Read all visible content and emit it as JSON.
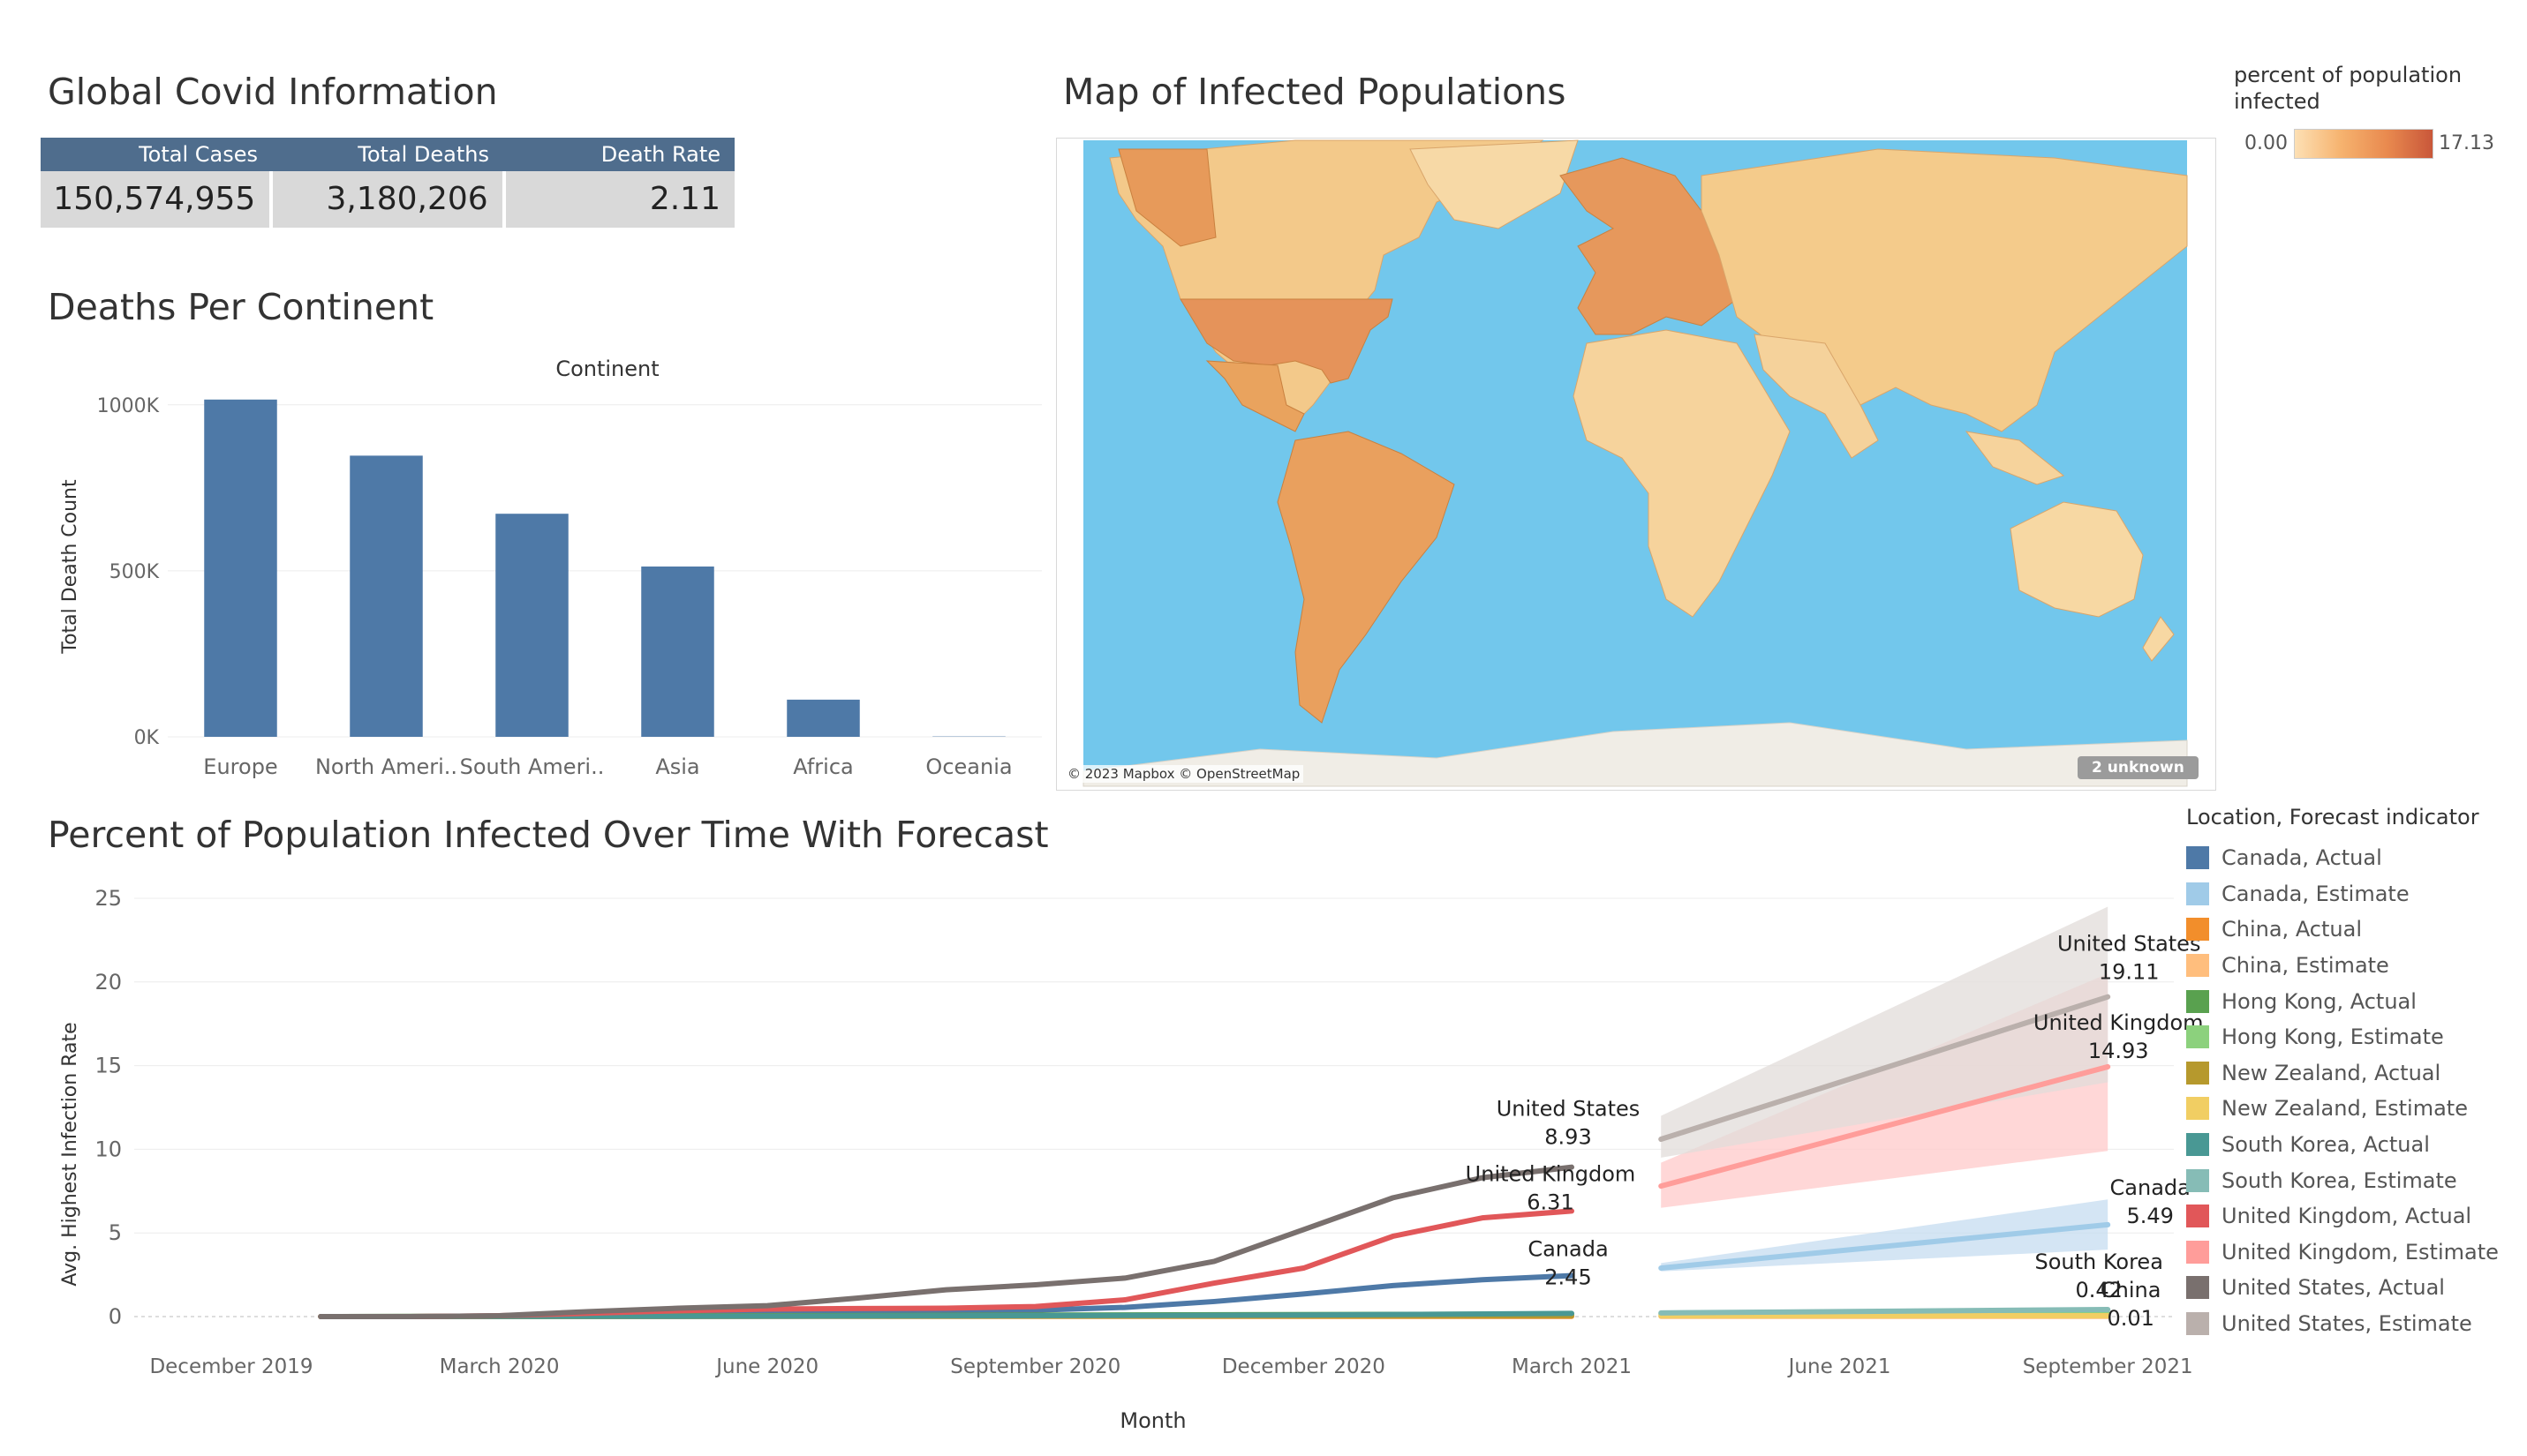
{
  "kpi": {
    "title": "Global Covid Information",
    "headers": [
      "Total Cases",
      "Total Deaths",
      "Death Rate"
    ],
    "values": [
      "150,574,955",
      "3,180,206",
      "2.11"
    ]
  },
  "map": {
    "title": "Map of Infected Populations",
    "credit": "© 2023 Mapbox © OpenStreetMap",
    "unknown_badge": "2 unknown",
    "legend_title": "percent of population infected",
    "legend_min": "0.00",
    "legend_max": "17.13",
    "ocean_color": "#72c7ec",
    "land_color": "#f3c98a"
  },
  "chart_data": [
    {
      "type": "bar",
      "title": "Deaths Per Continent",
      "column_header": "Continent",
      "ylabel": "Total Death Count",
      "categories": [
        "Europe",
        "North Ameri..",
        "South Ameri..",
        "Asia",
        "Africa",
        "Oceania"
      ],
      "values": [
        1016000,
        847000,
        672000,
        513000,
        112000,
        1000
      ],
      "ylim": [
        0,
        1050000
      ],
      "yticks": [
        0,
        500000,
        1000000
      ],
      "ytick_labels": [
        "0K",
        "500K",
        "1000K"
      ],
      "color": "#4e79a7",
      "grid": true
    },
    {
      "type": "line",
      "title": "Percent of Population Infected Over Time With Forecast",
      "xlabel": "Month",
      "ylabel": "Avg. Highest Infection Rate",
      "ylim": [
        0,
        25
      ],
      "yticks": [
        0,
        5,
        10,
        15,
        20,
        25
      ],
      "x_ticks": [
        "2019-12",
        "2020-03",
        "2020-06",
        "2020-09",
        "2020-12",
        "2021-03",
        "2021-06",
        "2021-09"
      ],
      "x_tick_labels": [
        "December 2019",
        "March 2020",
        "June 2020",
        "September 2020",
        "December 2020",
        "March 2021",
        "June 2021",
        "September 2021"
      ],
      "legend_title": "Location, Forecast indicator",
      "legend_placement": "right",
      "grid": true,
      "series": [
        {
          "name": "Canada, Actual",
          "color": "#4e79a7",
          "x": [
            "2020-01",
            "2020-02",
            "2020-03",
            "2020-04",
            "2020-05",
            "2020-06",
            "2020-07",
            "2020-08",
            "2020-09",
            "2020-10",
            "2020-11",
            "2020-12",
            "2021-01",
            "2021-02",
            "2021-03"
          ],
          "values": [
            0,
            0,
            0.02,
            0.1,
            0.2,
            0.27,
            0.3,
            0.33,
            0.38,
            0.55,
            0.9,
            1.35,
            1.85,
            2.2,
            2.45
          ]
        },
        {
          "name": "Canada, Estimate",
          "color": "#a0cbe8",
          "band_color": "#c6dcf0",
          "x": [
            "2021-04",
            "2021-09"
          ],
          "values": [
            2.9,
            5.49
          ],
          "lower": [
            2.7,
            4.0
          ],
          "upper": [
            3.2,
            7.0
          ]
        },
        {
          "name": "China, Actual",
          "color": "#f28e2b",
          "x": [
            "2020-01",
            "2020-06",
            "2021-03"
          ],
          "values": [
            0,
            0.01,
            0.01
          ]
        },
        {
          "name": "China, Estimate",
          "color": "#ffbe7d",
          "x": [
            "2021-04",
            "2021-09"
          ],
          "values": [
            0.01,
            0.01
          ]
        },
        {
          "name": "Hong Kong, Actual",
          "color": "#59a14f",
          "x": [
            "2020-01",
            "2021-03"
          ],
          "values": [
            0,
            0.15
          ]
        },
        {
          "name": "Hong Kong, Estimate",
          "color": "#8cd17d",
          "x": [
            "2021-04",
            "2021-09"
          ],
          "values": [
            0.15,
            0.17
          ]
        },
        {
          "name": "New Zealand, Actual",
          "color": "#b6992d",
          "x": [
            "2020-01",
            "2021-03"
          ],
          "values": [
            0,
            0.05
          ]
        },
        {
          "name": "New Zealand, Estimate",
          "color": "#f1ce63",
          "x": [
            "2021-04",
            "2021-09"
          ],
          "values": [
            0.05,
            0.05
          ]
        },
        {
          "name": "South Korea, Actual",
          "color": "#499894",
          "x": [
            "2020-01",
            "2020-06",
            "2020-12",
            "2021-03"
          ],
          "values": [
            0,
            0.02,
            0.09,
            0.19
          ]
        },
        {
          "name": "South Korea, Estimate",
          "color": "#86bcb6",
          "x": [
            "2021-04",
            "2021-09"
          ],
          "values": [
            0.22,
            0.42
          ]
        },
        {
          "name": "United Kingdom, Actual",
          "color": "#e15759",
          "x": [
            "2020-01",
            "2020-02",
            "2020-03",
            "2020-04",
            "2020-05",
            "2020-06",
            "2020-07",
            "2020-08",
            "2020-09",
            "2020-10",
            "2020-11",
            "2020-12",
            "2021-01",
            "2021-02",
            "2021-03"
          ],
          "values": [
            0,
            0,
            0.05,
            0.2,
            0.35,
            0.45,
            0.48,
            0.5,
            0.6,
            1.0,
            2.0,
            2.9,
            4.8,
            5.9,
            6.31
          ]
        },
        {
          "name": "United Kingdom, Estimate",
          "color": "#ff9d9a",
          "band_color": "#ffc9c9",
          "x": [
            "2021-04",
            "2021-09"
          ],
          "values": [
            7.8,
            14.93
          ],
          "lower": [
            6.5,
            9.9
          ],
          "upper": [
            9.2,
            20.5
          ]
        },
        {
          "name": "United States, Actual",
          "color": "#79706e",
          "x": [
            "2020-01",
            "2020-02",
            "2020-03",
            "2020-04",
            "2020-05",
            "2020-06",
            "2020-07",
            "2020-08",
            "2020-09",
            "2020-10",
            "2020-11",
            "2020-12",
            "2021-01",
            "2021-02",
            "2021-03"
          ],
          "values": [
            0,
            0,
            0.05,
            0.3,
            0.5,
            0.65,
            1.1,
            1.6,
            1.9,
            2.3,
            3.3,
            5.2,
            7.1,
            8.3,
            8.93
          ]
        },
        {
          "name": "United States, Estimate",
          "color": "#bab0ac",
          "band_color": "#e1dcda",
          "x": [
            "2021-04",
            "2021-09"
          ],
          "values": [
            10.6,
            19.11
          ],
          "lower": [
            9.5,
            14.0
          ],
          "upper": [
            12.0,
            24.5
          ]
        }
      ],
      "annotations": [
        {
          "label": "United States",
          "value": "8.93",
          "x": "2021-03",
          "y": 8.93
        },
        {
          "label": "United Kingdom",
          "value": "6.31",
          "x": "2021-03",
          "y": 6.31
        },
        {
          "label": "Canada",
          "value": "2.45",
          "x": "2021-03",
          "y": 2.45
        },
        {
          "label": "United States",
          "value": "19.11",
          "x": "2021-09",
          "y": 19.11
        },
        {
          "label": "United Kingdom",
          "value": "14.93",
          "x": "2021-09",
          "y": 14.93
        },
        {
          "label": "Canada",
          "value": "5.49",
          "x": "2021-09",
          "y": 5.49
        },
        {
          "label": "South Korea",
          "value": "0.42",
          "x": "2021-09",
          "y": 0.42
        },
        {
          "label": "China",
          "value": "0.01",
          "x": "2021-09",
          "y": 0.01
        }
      ]
    }
  ]
}
